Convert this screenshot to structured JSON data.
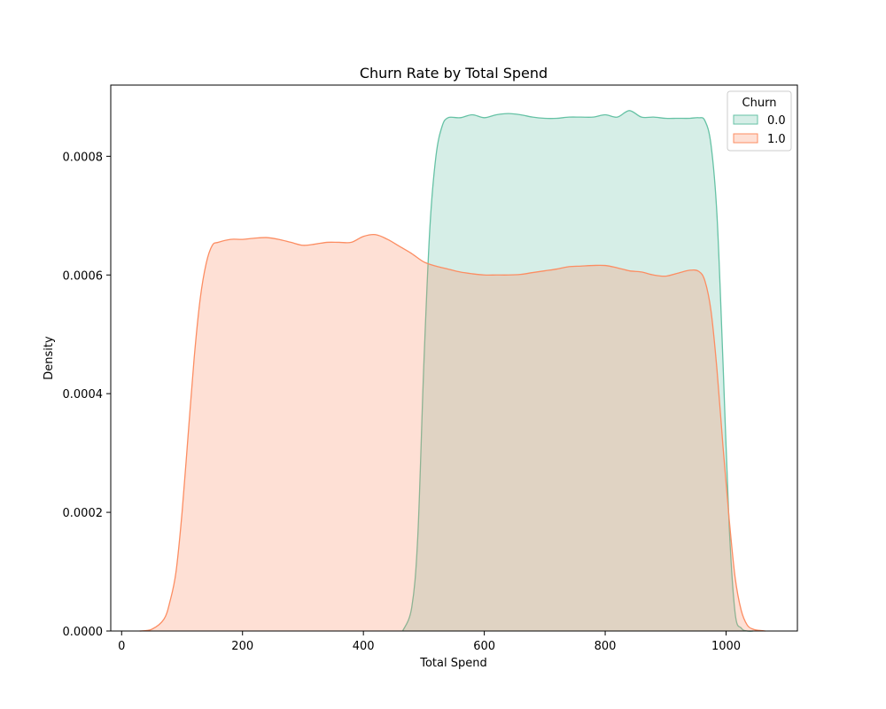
{
  "chart_data": {
    "type": "area",
    "title": "Churn Rate by Total Spend",
    "xlabel": "Total Spend",
    "ylabel": "Density",
    "xlim": [
      -18,
      1118
    ],
    "ylim": [
      0,
      0.00092
    ],
    "xticks": [
      0,
      200,
      400,
      600,
      800,
      1000
    ],
    "xtick_labels": [
      "0",
      "200",
      "400",
      "600",
      "800",
      "1000"
    ],
    "yticks": [
      0,
      0.0002,
      0.0004,
      0.0006,
      0.0008
    ],
    "ytick_labels": [
      "0.0000",
      "0.0002",
      "0.0004",
      "0.0006",
      "0.0008"
    ],
    "grid": false,
    "legend": {
      "title": "Churn",
      "placement": "top-right"
    },
    "series": [
      {
        "name": "0.0",
        "color": "#66c2a5",
        "fill_opacity": 0.27,
        "x": [
          465,
          480,
          490,
          500,
          510,
          520,
          530,
          540,
          560,
          580,
          600,
          620,
          640,
          660,
          680,
          700,
          720,
          740,
          760,
          780,
          800,
          820,
          840,
          860,
          880,
          900,
          920,
          940,
          955,
          965,
          975,
          985,
          995,
          1005,
          1015,
          1025,
          1035,
          1045
        ],
        "y": [
          0,
          4e-05,
          0.00016,
          0.00045,
          0.00068,
          0.0008,
          0.00085,
          0.000865,
          0.000865,
          0.00087,
          0.000865,
          0.00087,
          0.000872,
          0.00087,
          0.000866,
          0.000864,
          0.000864,
          0.000866,
          0.000866,
          0.000866,
          0.00087,
          0.000866,
          0.000877,
          0.000866,
          0.000866,
          0.000864,
          0.000864,
          0.000864,
          0.000865,
          0.00086,
          0.00082,
          0.0007,
          0.00045,
          0.00018,
          3e-05,
          5e-06,
          0,
          0
        ]
      },
      {
        "name": "1.0",
        "color": "#fc8d62",
        "fill_opacity": 0.27,
        "x": [
          30,
          50,
          70,
          80,
          90,
          100,
          110,
          120,
          130,
          140,
          150,
          160,
          180,
          200,
          220,
          240,
          260,
          280,
          300,
          320,
          340,
          360,
          380,
          400,
          420,
          440,
          460,
          480,
          500,
          520,
          540,
          560,
          580,
          600,
          620,
          640,
          660,
          680,
          700,
          720,
          740,
          760,
          780,
          800,
          820,
          840,
          860,
          880,
          900,
          920,
          940,
          955,
          965,
          975,
          985,
          995,
          1005,
          1015,
          1025,
          1035,
          1045,
          1055,
          1065
        ],
        "y": [
          0,
          3e-06,
          2e-05,
          5e-05,
          0.0001,
          0.0002,
          0.00033,
          0.00046,
          0.00056,
          0.00062,
          0.00065,
          0.000655,
          0.00066,
          0.00066,
          0.000662,
          0.000663,
          0.00066,
          0.000655,
          0.00065,
          0.000652,
          0.000655,
          0.000655,
          0.000655,
          0.000665,
          0.000668,
          0.00066,
          0.000648,
          0.000636,
          0.000622,
          0.000615,
          0.00061,
          0.000605,
          0.000602,
          0.0006,
          0.0006,
          0.0006,
          0.000601,
          0.000604,
          0.000607,
          0.00061,
          0.000614,
          0.000615,
          0.000616,
          0.000616,
          0.000612,
          0.000607,
          0.000605,
          0.0006,
          0.000598,
          0.000603,
          0.000608,
          0.000606,
          0.00059,
          0.00054,
          0.00044,
          0.00031,
          0.00019,
          9e-05,
          3.5e-05,
          1e-05,
          3e-06,
          1e-06,
          0
        ]
      }
    ]
  }
}
